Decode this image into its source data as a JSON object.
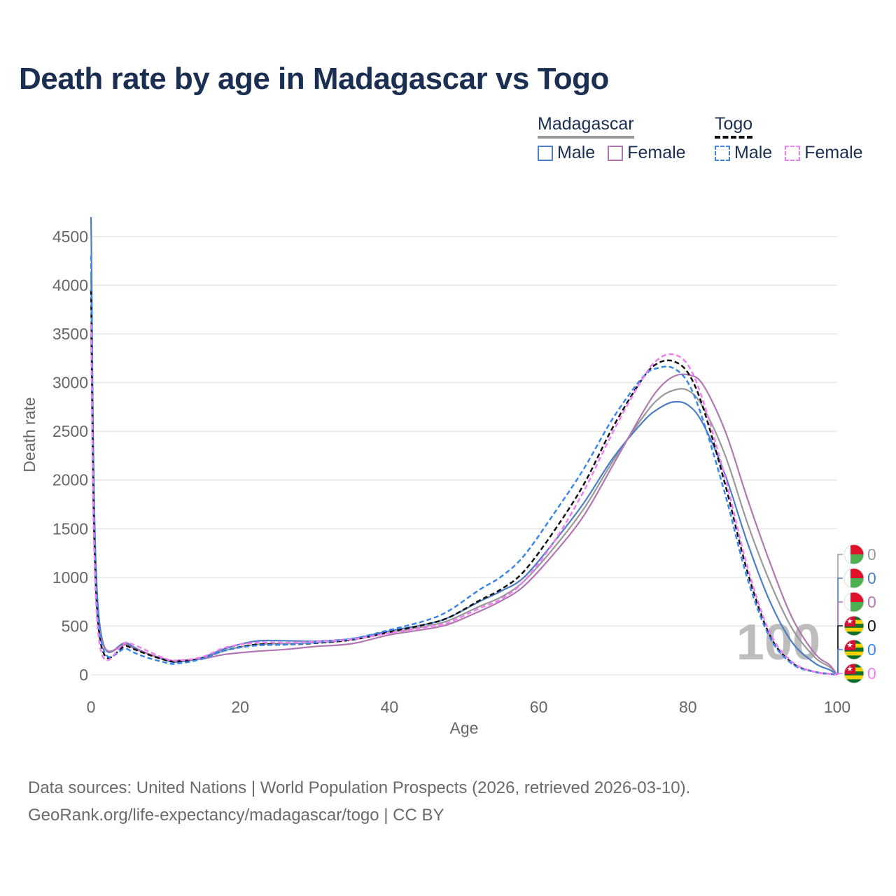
{
  "title": "Death rate by age in Madagascar vs Togo",
  "legend": {
    "groups": [
      {
        "name": "Madagascar",
        "line_color": "#999999",
        "line_style": "solid",
        "items": [
          {
            "label": "Male",
            "color": "#4c7ec4",
            "style": "solid"
          },
          {
            "label": "Female",
            "color": "#b276b2",
            "style": "solid"
          }
        ]
      },
      {
        "name": "Togo",
        "line_color": "#111111",
        "line_style": "dashed",
        "items": [
          {
            "label": "Male",
            "color": "#3a87e8",
            "style": "dashed"
          },
          {
            "label": "Female",
            "color": "#f07ef0",
            "style": "dashed"
          }
        ]
      }
    ]
  },
  "sources": {
    "line1": "Data sources: United Nations | World Population Prospects (2026, retrieved 2026-03-10).",
    "line2": "GeoRank.org/life-expectancy/madagascar/togo | CC BY"
  },
  "chart_data": {
    "type": "line",
    "xlabel": "Age",
    "ylabel": "Death rate",
    "xlim": [
      0,
      100
    ],
    "ylim": [
      0,
      4700
    ],
    "xticks": [
      0,
      20,
      40,
      60,
      80,
      100
    ],
    "yticks": [
      0,
      500,
      1000,
      1500,
      2000,
      2500,
      3000,
      3500,
      4000,
      4500
    ],
    "watermark": "100",
    "series": [
      {
        "name": "Madagascar Total",
        "country": "Madagascar",
        "sex": "Total",
        "color": "#999999",
        "dashed": false,
        "x": [
          0,
          1,
          5,
          10,
          12,
          15,
          18,
          22,
          26,
          30,
          35,
          40,
          45,
          48,
          52,
          55,
          58,
          62,
          66,
          70,
          74,
          76,
          78,
          80,
          82,
          85,
          88,
          91,
          94,
          97,
          99,
          100
        ],
        "y": [
          4100,
          580,
          310,
          155,
          140,
          170,
          250,
          310,
          320,
          330,
          360,
          430,
          500,
          560,
          700,
          800,
          960,
          1300,
          1700,
          2200,
          2650,
          2830,
          2920,
          2920,
          2750,
          2250,
          1550,
          950,
          470,
          180,
          80,
          0
        ]
      },
      {
        "name": "Madagascar Male",
        "country": "Madagascar",
        "sex": "Male",
        "color": "#4c7ec4",
        "dashed": false,
        "x": [
          0,
          1,
          5,
          10,
          12,
          15,
          18,
          22,
          26,
          30,
          35,
          40,
          45,
          48,
          52,
          55,
          58,
          62,
          66,
          70,
          74,
          76,
          78,
          80,
          82,
          85,
          88,
          91,
          94,
          97,
          99,
          100
        ],
        "y": [
          4700,
          640,
          320,
          150,
          135,
          180,
          270,
          345,
          350,
          345,
          370,
          450,
          520,
          590,
          750,
          860,
          1000,
          1360,
          1760,
          2230,
          2600,
          2730,
          2800,
          2770,
          2580,
          2050,
          1350,
          750,
          330,
          120,
          50,
          0
        ]
      },
      {
        "name": "Madagascar Female",
        "country": "Madagascar",
        "sex": "Female",
        "color": "#b276b2",
        "dashed": false,
        "x": [
          0,
          1,
          5,
          10,
          12,
          15,
          18,
          22,
          26,
          30,
          35,
          40,
          45,
          48,
          52,
          55,
          58,
          62,
          66,
          70,
          74,
          76,
          78,
          80,
          82,
          85,
          88,
          91,
          94,
          97,
          99,
          100
        ],
        "y": [
          3500,
          540,
          300,
          160,
          150,
          165,
          210,
          240,
          260,
          290,
          320,
          410,
          470,
          520,
          650,
          760,
          910,
          1240,
          1630,
          2160,
          2700,
          2930,
          3060,
          3080,
          2980,
          2500,
          1800,
          1150,
          580,
          220,
          100,
          0
        ]
      },
      {
        "name": "Togo Total",
        "country": "Togo",
        "sex": "Total",
        "color": "#111111",
        "dashed": true,
        "x": [
          0,
          1,
          5,
          10,
          12,
          15,
          18,
          22,
          26,
          30,
          35,
          40,
          45,
          48,
          52,
          55,
          58,
          62,
          66,
          70,
          74,
          76,
          78,
          80,
          82,
          85,
          88,
          91,
          94,
          97,
          99,
          100
        ],
        "y": [
          3950,
          490,
          290,
          150,
          140,
          170,
          250,
          310,
          310,
          325,
          360,
          440,
          520,
          590,
          760,
          880,
          1060,
          1470,
          1950,
          2550,
          3050,
          3200,
          3220,
          3100,
          2750,
          1950,
          1050,
          400,
          120,
          30,
          10,
          0
        ]
      },
      {
        "name": "Togo Male",
        "country": "Togo",
        "sex": "Male",
        "color": "#3a87e8",
        "dashed": true,
        "x": [
          0,
          1,
          5,
          10,
          12,
          15,
          18,
          22,
          26,
          30,
          35,
          40,
          45,
          48,
          52,
          55,
          58,
          62,
          66,
          70,
          74,
          76,
          78,
          80,
          82,
          85,
          88,
          91,
          94,
          97,
          99,
          100
        ],
        "y": [
          4300,
          560,
          260,
          125,
          120,
          165,
          250,
          300,
          310,
          330,
          370,
          460,
          560,
          660,
          870,
          1010,
          1220,
          1650,
          2110,
          2640,
          3060,
          3150,
          3150,
          3000,
          2620,
          1850,
          980,
          380,
          110,
          30,
          10,
          0
        ]
      },
      {
        "name": "Togo Female",
        "country": "Togo",
        "sex": "Female",
        "color": "#f07ef0",
        "dashed": true,
        "x": [
          0,
          1,
          5,
          10,
          12,
          15,
          18,
          22,
          26,
          30,
          35,
          40,
          45,
          48,
          52,
          55,
          58,
          62,
          66,
          70,
          74,
          76,
          78,
          80,
          82,
          85,
          88,
          91,
          94,
          97,
          99,
          100
        ],
        "y": [
          3600,
          400,
          330,
          165,
          150,
          185,
          280,
          330,
          330,
          340,
          365,
          430,
          490,
          540,
          680,
          780,
          960,
          1360,
          1880,
          2500,
          3050,
          3240,
          3290,
          3180,
          2820,
          2020,
          1100,
          430,
          130,
          30,
          10,
          0
        ]
      }
    ],
    "end_labels": [
      {
        "value": "0",
        "country": "Madagascar",
        "color": "#999999"
      },
      {
        "value": "0",
        "country": "Madagascar",
        "color": "#4c7ec4"
      },
      {
        "value": "0",
        "country": "Madagascar",
        "color": "#b276b2"
      },
      {
        "value": "0",
        "country": "Togo",
        "color": "#111111"
      },
      {
        "value": "0",
        "country": "Togo",
        "color": "#3a87e8"
      },
      {
        "value": "0",
        "country": "Togo",
        "color": "#f07ef0"
      }
    ]
  }
}
